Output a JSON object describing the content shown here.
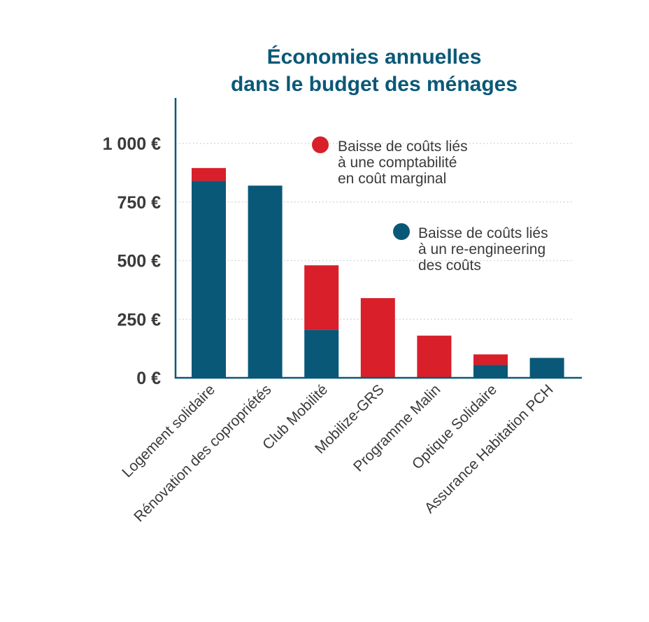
{
  "chart_data": {
    "type": "bar",
    "stacked": true,
    "title": [
      "Économies annuelles",
      "dans le budget des ménages"
    ],
    "xlabel": "",
    "ylabel": "",
    "ylim": [
      0,
      1200
    ],
    "yticks": [
      0,
      250,
      500,
      750,
      1000
    ],
    "ytick_labels": [
      "0 €",
      "250 €",
      "500 €",
      "750 €",
      "1 000 €"
    ],
    "grid": true,
    "categories": [
      "Logement solidaire",
      "Rénovation des copropriétés",
      "Club Mobilité",
      "Mobilize-GRS",
      "Programme Malin",
      "Optique Solidaire",
      "Assurance Habitation PCH"
    ],
    "series": [
      {
        "name": [
          "Baisse de coûts liés",
          "à un re-engineering",
          "des coûts"
        ],
        "color": "#0a5878",
        "values": [
          840,
          820,
          205,
          0,
          0,
          55,
          85
        ]
      },
      {
        "name": [
          "Baisse de coûts liés",
          "à une comptabilité",
          "en coût marginal"
        ],
        "color": "#d81f2a",
        "values": [
          55,
          0,
          275,
          340,
          180,
          45,
          0
        ]
      }
    ],
    "legend_position": "top-right"
  }
}
